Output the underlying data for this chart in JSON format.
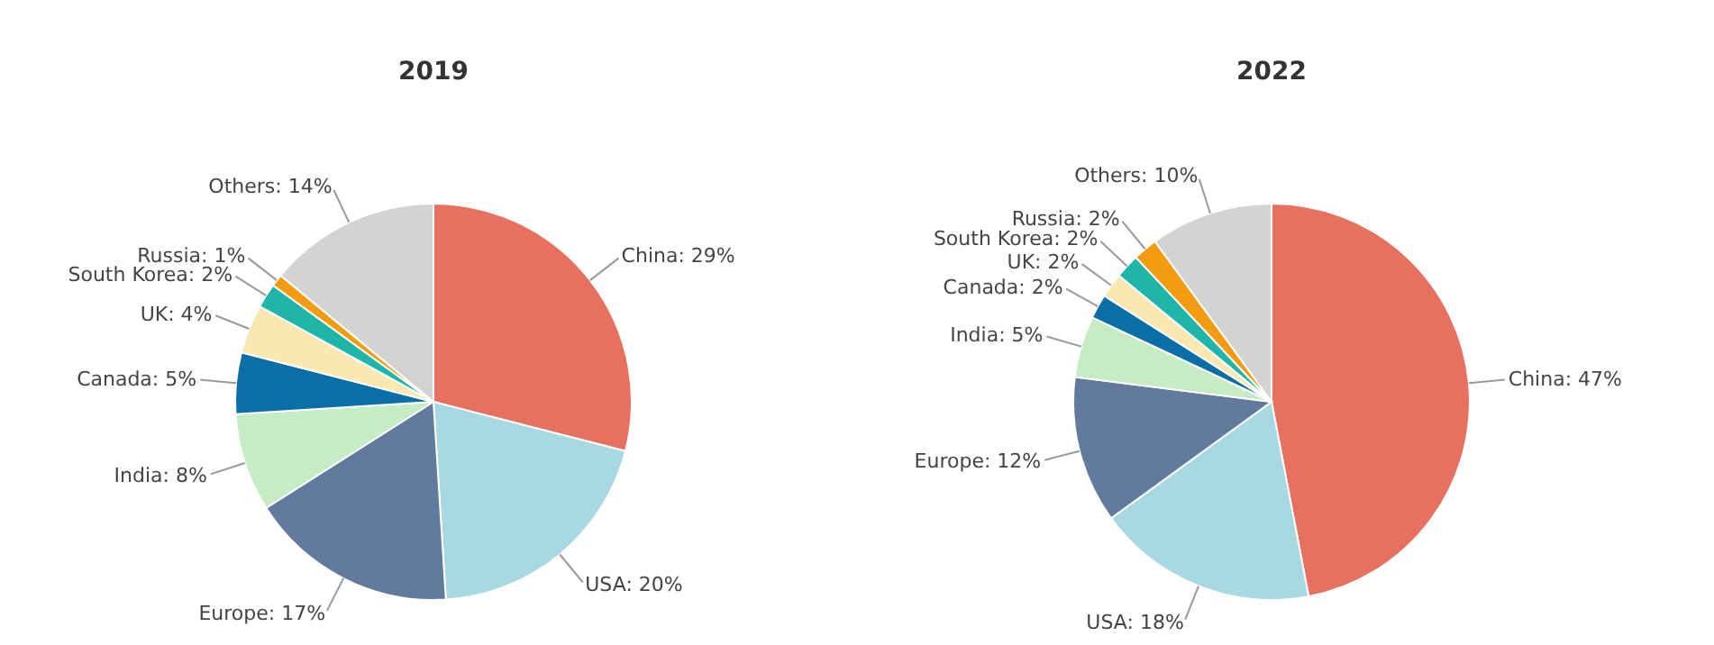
{
  "chart_data": [
    {
      "type": "pie",
      "title": "2019",
      "categories": [
        "China",
        "USA",
        "Europe",
        "India",
        "Canada",
        "UK",
        "South Korea",
        "Russia",
        "Others"
      ],
      "values": [
        29,
        20,
        17,
        8,
        5,
        4,
        2,
        1,
        14
      ],
      "value_labels": [
        "29%",
        "20%",
        "17%",
        "8%",
        "5%",
        "4%",
        "2%",
        "1%",
        "14%"
      ],
      "colors": [
        "#e8705f",
        "#a8d8e2",
        "#627a9d",
        "#c6ecc4",
        "#0a6fa6",
        "#fbe8b0",
        "#1fb5a8",
        "#f39c12",
        "#d3d3d3"
      ],
      "legend": false
    },
    {
      "type": "pie",
      "title": "2022",
      "categories": [
        "China",
        "USA",
        "Europe",
        "India",
        "Canada",
        "UK",
        "South Korea",
        "Russia",
        "Others"
      ],
      "values": [
        47,
        18,
        12,
        5,
        2,
        2,
        2,
        2,
        10
      ],
      "value_labels": [
        "47%",
        "18%",
        "12%",
        "5%",
        "2%",
        "2%",
        "2%",
        "2%",
        "10%"
      ],
      "colors": [
        "#e8705f",
        "#a8d8e2",
        "#627a9d",
        "#c6ecc4",
        "#0a6fa6",
        "#fbe8b0",
        "#1fb5a8",
        "#f39c12",
        "#d3d3d3"
      ],
      "legend": false
    }
  ]
}
